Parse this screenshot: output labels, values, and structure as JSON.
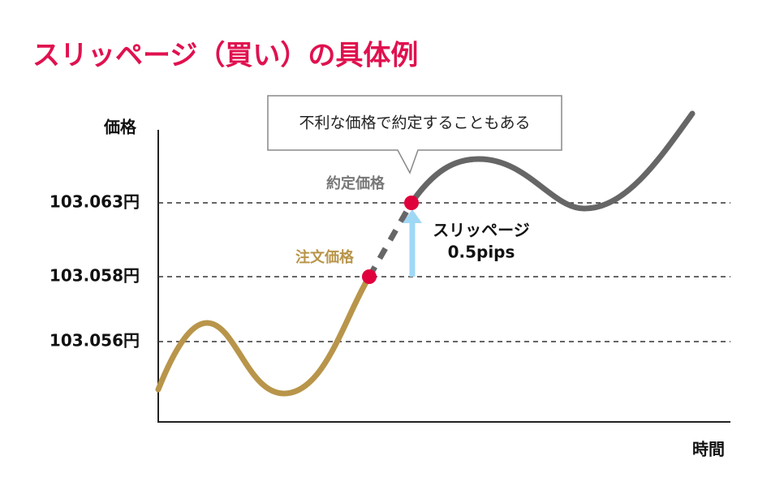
{
  "title": "スリッページ（買い）の具体例",
  "axis": {
    "y_label": "価格",
    "x_label": "時間"
  },
  "price_levels": [
    "103.063円",
    "103.058円",
    "103.056円"
  ],
  "callout": "不利な価格で約定することもある",
  "labels": {
    "fill_price": "約定価格",
    "order_price": "注文価格"
  },
  "slippage": {
    "label": "スリッページ",
    "amount": "0.5pips"
  }
}
